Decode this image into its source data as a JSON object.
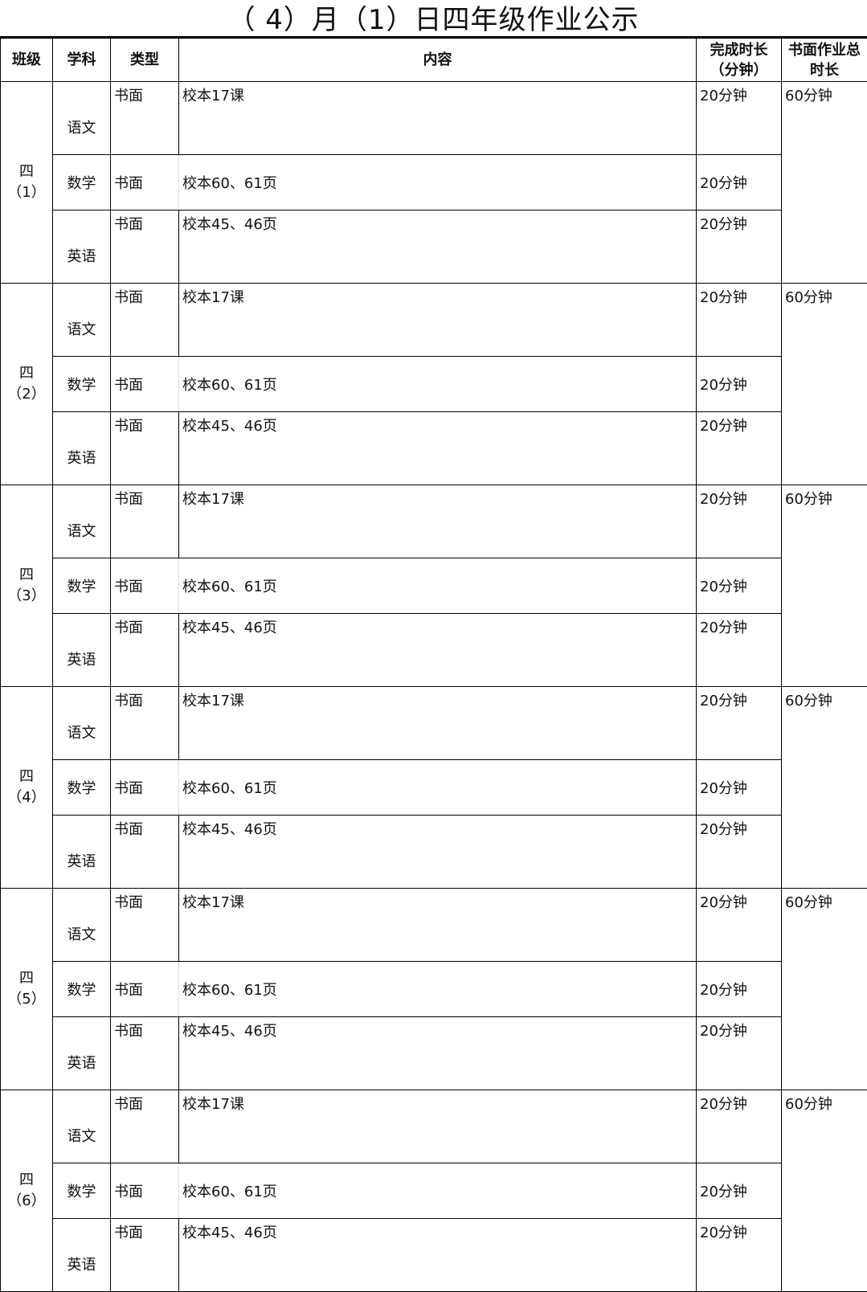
{
  "title": "（ 4）月（1）日四年级作业公示",
  "headers": {
    "class": "班级",
    "subject": "学科",
    "type": "类型",
    "content": "内容",
    "duration": "完成时长（分钟）",
    "total": "书面作业总时长"
  },
  "classes": [
    {
      "name": "四（1）",
      "total": "60分钟"
    },
    {
      "name": "四（2）",
      "total": "60分钟"
    },
    {
      "name": "四（3）",
      "total": "60分钟"
    },
    {
      "name": "四（4）",
      "total": "60分钟"
    },
    {
      "name": "四（5）",
      "total": "60分钟"
    },
    {
      "name": "四（6）",
      "total": "60分钟"
    }
  ],
  "subjects": [
    {
      "subject": "语文",
      "type": "书面",
      "content": "校本17课",
      "duration": "20分钟"
    },
    {
      "subject": "数学",
      "type": "书面",
      "content": "校本60、61页",
      "duration": "20分钟"
    },
    {
      "subject": "英语",
      "type": "书面",
      "content": "校本45、46页",
      "duration": "20分钟"
    }
  ]
}
